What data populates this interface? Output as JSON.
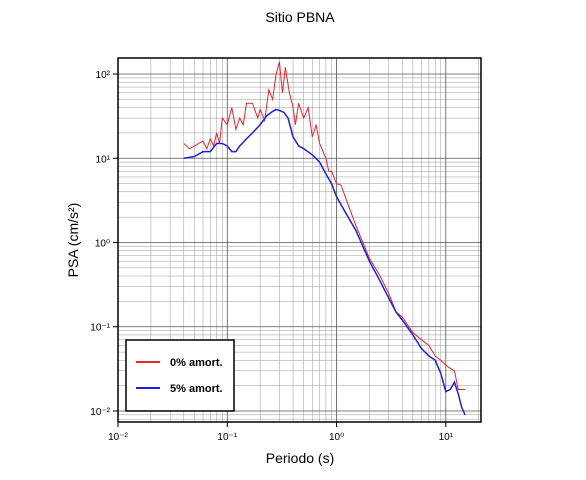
{
  "chart_data": {
    "type": "line",
    "title": "Sitio PBNA",
    "xlabel": "Periodo (s)",
    "ylabel": "PSA (cm/s²)",
    "log_x": true,
    "log_y": true,
    "grid": true,
    "minor_grid": true,
    "legend": "lower left",
    "xlim": [
      0.01,
      21
    ],
    "ylim": [
      0.0074,
      155
    ],
    "xticks": [
      {
        "value": 0.01,
        "label": "10⁻²"
      },
      {
        "value": 0.1,
        "label": "10⁻¹"
      },
      {
        "value": 1,
        "label": "10⁰"
      },
      {
        "value": 10,
        "label": "10¹"
      }
    ],
    "yticks": [
      {
        "value": 0.01,
        "label": "10⁻²"
      },
      {
        "value": 0.1,
        "label": "10⁻¹"
      },
      {
        "value": 1,
        "label": "10⁰"
      },
      {
        "value": 10,
        "label": "10¹"
      },
      {
        "value": 100,
        "label": "10²"
      }
    ],
    "series": [
      {
        "name": "0% amort.",
        "color": "#e8262b",
        "x": [
          0.04,
          0.045,
          0.05,
          0.06,
          0.065,
          0.07,
          0.075,
          0.08,
          0.085,
          0.09,
          0.1,
          0.11,
          0.12,
          0.13,
          0.14,
          0.15,
          0.17,
          0.19,
          0.2,
          0.22,
          0.24,
          0.26,
          0.28,
          0.3,
          0.32,
          0.34,
          0.37,
          0.4,
          0.42,
          0.45,
          0.5,
          0.55,
          0.6,
          0.65,
          0.7,
          0.8,
          0.85,
          0.9,
          1.0,
          1.1,
          1.2,
          1.5,
          2,
          2.5,
          3,
          3.5,
          4,
          5,
          6,
          7,
          8,
          9,
          10,
          11,
          12,
          13,
          15
        ],
        "values": [
          15,
          13,
          14,
          16,
          13,
          17,
          14,
          20,
          15,
          30,
          25,
          40,
          22,
          30,
          25,
          45,
          45,
          30,
          38,
          28,
          65,
          50,
          100,
          140,
          60,
          120,
          60,
          40,
          25,
          45,
          30,
          40,
          18,
          25,
          15,
          10,
          7,
          7,
          5,
          4.8,
          3.5,
          1.6,
          0.65,
          0.4,
          0.25,
          0.15,
          0.13,
          0.085,
          0.07,
          0.06,
          0.045,
          0.04,
          0.035,
          0.032,
          0.03,
          0.018,
          0.018
        ]
      },
      {
        "name": "5% amort.",
        "color": "#1f1fe0",
        "x": [
          0.04,
          0.05,
          0.06,
          0.07,
          0.08,
          0.09,
          0.1,
          0.11,
          0.12,
          0.13,
          0.15,
          0.17,
          0.2,
          0.23,
          0.26,
          0.28,
          0.3,
          0.33,
          0.36,
          0.4,
          0.45,
          0.5,
          0.6,
          0.7,
          0.8,
          0.9,
          1.0,
          1.2,
          1.5,
          2.0,
          2.5,
          3.0,
          3.5,
          4.0,
          5.0,
          6.0,
          7.0,
          8.0,
          9.0,
          10,
          11,
          12,
          13,
          14,
          15
        ],
        "values": [
          10,
          10.5,
          12,
          12,
          15,
          15,
          14,
          12,
          12,
          14,
          17,
          20,
          25,
          32,
          36,
          38,
          37,
          35,
          30,
          18,
          14,
          13,
          11,
          9,
          6.5,
          5,
          3.5,
          2.3,
          1.4,
          0.6,
          0.35,
          0.22,
          0.15,
          0.12,
          0.08,
          0.055,
          0.045,
          0.04,
          0.028,
          0.017,
          0.018,
          0.022,
          0.016,
          0.011,
          0.009
        ]
      }
    ]
  }
}
